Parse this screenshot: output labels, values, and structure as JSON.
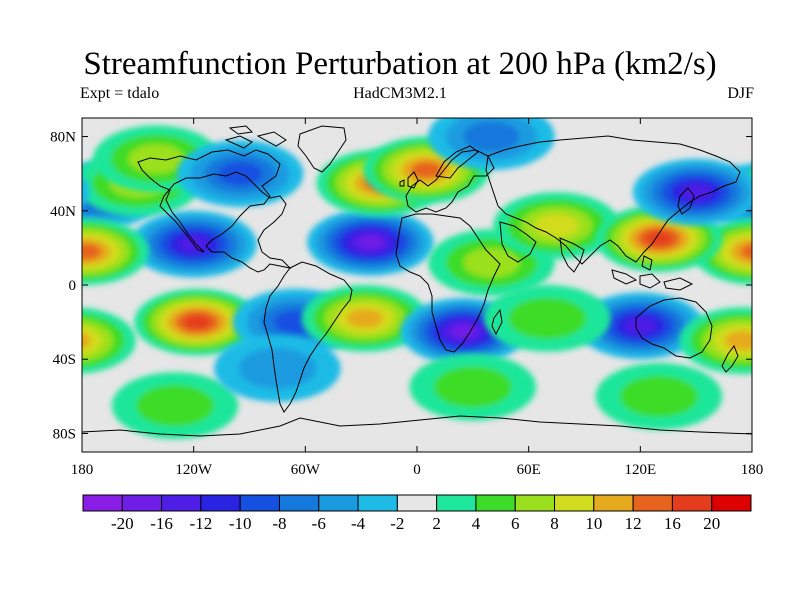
{
  "title": "Streamfunction Perturbation at 200 hPa (km2/s)",
  "subtitle_left": "Expt = tdalo",
  "subtitle_center": "HadCM3M2.1",
  "subtitle_right": "DJF",
  "map": {
    "lon_range": [
      -180,
      180
    ],
    "lat_range": [
      -90,
      90
    ],
    "background_color": "#e6e6e6",
    "features": [
      {
        "name": "n-pacific-west-low",
        "lon": -172,
        "lat": 48,
        "value": -8
      },
      {
        "name": "n-pacific-east-high",
        "lon": -150,
        "lat": 55,
        "value": 6
      },
      {
        "name": "alaska-high",
        "lon": -140,
        "lat": 68,
        "value": 6
      },
      {
        "name": "n-america-low",
        "lon": -95,
        "lat": 60,
        "value": -8
      },
      {
        "name": "subtropical-pacific-low",
        "lon": -120,
        "lat": 22,
        "value": -14
      },
      {
        "name": "dateline-equatorial-high",
        "lon": -178,
        "lat": 18,
        "value": 12
      },
      {
        "name": "subtropical-atlantic-low",
        "lon": -25,
        "lat": 23,
        "value": -16
      },
      {
        "name": "n-atlantic-high",
        "lon": -20,
        "lat": 55,
        "value": 12
      },
      {
        "name": "europe-high",
        "lon": 5,
        "lat": 62,
        "value": 12
      },
      {
        "name": "arctic-low",
        "lon": 40,
        "lat": 80,
        "value": -6
      },
      {
        "name": "n-africa-high",
        "lon": 40,
        "lat": 12,
        "value": 6
      },
      {
        "name": "middle-east-high",
        "lon": 75,
        "lat": 32,
        "value": 8
      },
      {
        "name": "east-asia-high",
        "lon": 130,
        "lat": 25,
        "value": 16
      },
      {
        "name": "n-pacific-low",
        "lon": 150,
        "lat": 50,
        "value": -14
      },
      {
        "name": "s-pacific-high",
        "lon": -118,
        "lat": -20,
        "value": 18
      },
      {
        "name": "s-america-low",
        "lon": -65,
        "lat": -20,
        "value": -8
      },
      {
        "name": "s-atlantic-high",
        "lon": -28,
        "lat": -18,
        "value": 10
      },
      {
        "name": "s-africa-low",
        "lon": 25,
        "lat": -25,
        "value": -16
      },
      {
        "name": "indian-ocean-low",
        "lon": 120,
        "lat": -22,
        "value": -14
      },
      {
        "name": "s-indian-ocean-high",
        "lon": 70,
        "lat": -18,
        "value": 4
      },
      {
        "name": "australia-high",
        "lon": 175,
        "lat": -30,
        "value": 10
      },
      {
        "name": "southern-ocean-high",
        "lon": 30,
        "lat": -55,
        "value": 4
      },
      {
        "name": "southern-ocean-east-high",
        "lon": 130,
        "lat": -60,
        "value": 4
      },
      {
        "name": "s-pacific-southern-high",
        "lon": -130,
        "lat": -65,
        "value": 4
      },
      {
        "name": "drake-passage-low",
        "lon": -75,
        "lat": -45,
        "value": -4
      }
    ]
  },
  "axes": {
    "x_ticks": [
      "180",
      "120W",
      "60W",
      "0",
      "60E",
      "120E",
      "180"
    ],
    "y_ticks": [
      "80N",
      "40N",
      "0",
      "40S",
      "80S"
    ]
  },
  "colorbar": {
    "labels": [
      "-20",
      "-16",
      "-12",
      "-10",
      "-8",
      "-6",
      "-4",
      "-2",
      "2",
      "4",
      "6",
      "8",
      "10",
      "12",
      "16",
      "20"
    ],
    "colors": [
      "#8a1ee6",
      "#6e1ee6",
      "#4e1ee6",
      "#2a23e1",
      "#1550e1",
      "#1478dc",
      "#1a9be0",
      "#1ebbe6",
      "#e6e6e6",
      "#1ee69a",
      "#3cdc28",
      "#9be01e",
      "#d2dc1e",
      "#e6aa1e",
      "#e6641e",
      "#e63c1e",
      "#dc0000"
    ]
  },
  "colors": {
    "coastline": "#000000",
    "land_outline": "#000000"
  }
}
